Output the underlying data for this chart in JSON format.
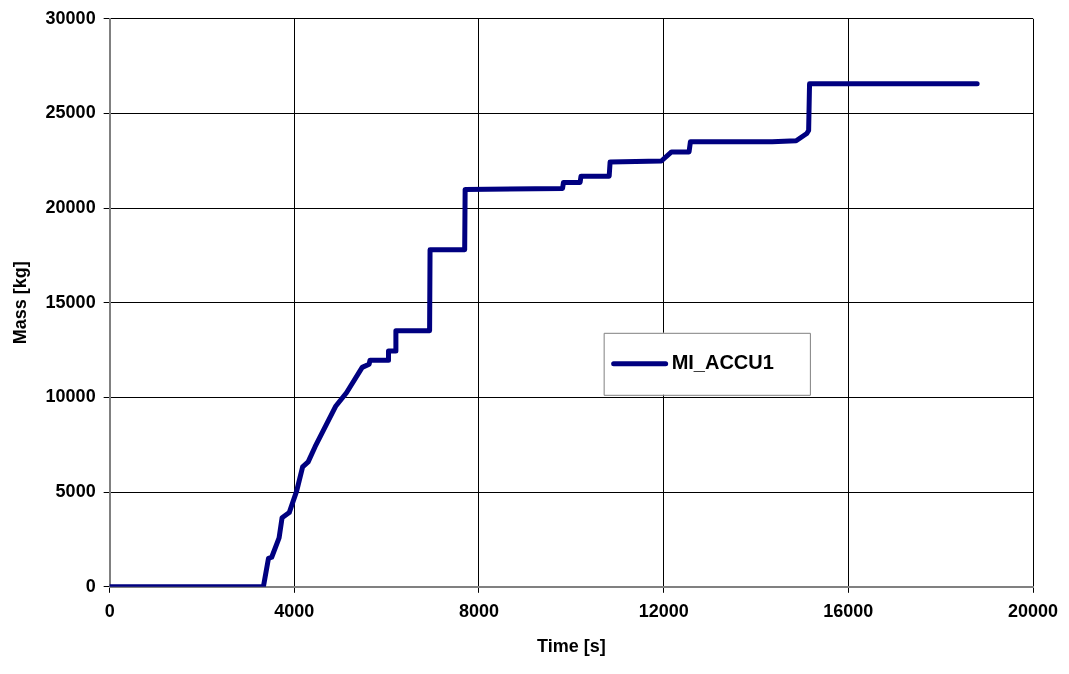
{
  "chart_data": {
    "type": "line",
    "xlabel": "Time [s]",
    "ylabel": "Mass [kg]",
    "x": [
      0,
      3330,
      3440,
      3510,
      3670,
      3735,
      3890,
      4050,
      4180,
      4300,
      4450,
      4900,
      5130,
      5470,
      5620,
      5640,
      6030,
      6040,
      6190,
      6200,
      6930,
      6940,
      7690,
      7700,
      9810,
      9830,
      10190,
      10210,
      10820,
      10840,
      11950,
      12170,
      12550,
      12580,
      14350,
      14870,
      15100,
      15140,
      15160,
      18790
    ],
    "series": [
      {
        "name": "MI_ACCU1",
        "color": "#000080",
        "values": [
          0,
          0,
          1500,
          1560,
          2580,
          3650,
          3920,
          5050,
          6330,
          6600,
          7400,
          9550,
          10250,
          11590,
          11760,
          11970,
          11970,
          12450,
          12450,
          13530,
          13530,
          17800,
          17800,
          20990,
          21040,
          21360,
          21360,
          21690,
          21690,
          22440,
          22490,
          22970,
          22970,
          23510,
          23510,
          23560,
          23940,
          24100,
          26570,
          26570
        ]
      }
    ],
    "xlim": [
      0,
      20000
    ],
    "xticks": [
      0,
      4000,
      8000,
      12000,
      16000,
      20000
    ],
    "ylim": [
      0,
      30000
    ],
    "yticks": [
      0,
      5000,
      10000,
      15000,
      20000,
      25000,
      30000
    ],
    "grid": true,
    "legend": "right",
    "marker": "none",
    "line_style": "solid"
  }
}
